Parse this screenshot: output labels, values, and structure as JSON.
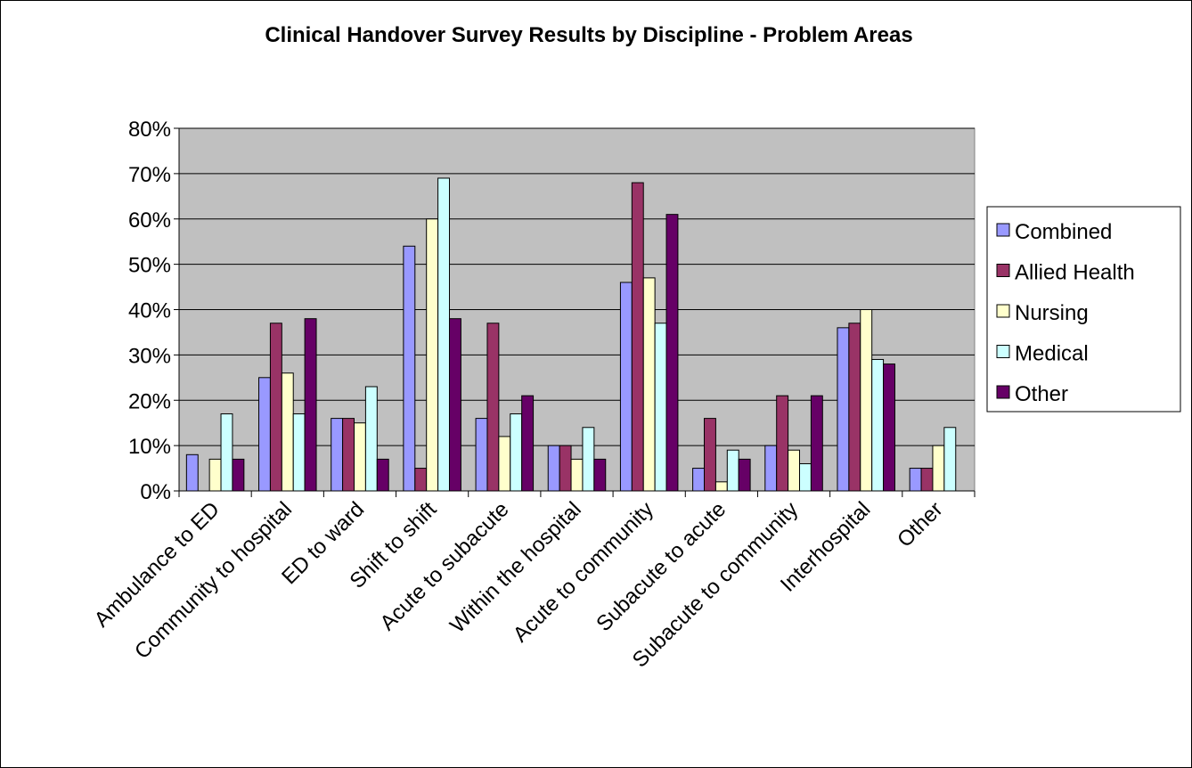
{
  "chart_data": {
    "type": "bar",
    "title": "Clinical Handover Survey Results by Discipline - Problem Areas",
    "xlabel": "",
    "ylabel": "",
    "ylim": [
      0,
      80
    ],
    "yticks": [
      "0%",
      "10%",
      "20%",
      "30%",
      "40%",
      "50%",
      "60%",
      "70%",
      "80%"
    ],
    "grid": true,
    "legend_position": "right",
    "categories": [
      "Ambulance to ED",
      "Community to hospital",
      "ED to ward",
      "Shift to shift",
      "Acute to subacute",
      "Within the hospital",
      "Acute to community",
      "Subacute to acute",
      "Subacute to community",
      "Interhospital",
      "Other"
    ],
    "series": [
      {
        "name": "Combined",
        "color": "#9999FF",
        "values": [
          8,
          25,
          16,
          54,
          16,
          10,
          46,
          5,
          10,
          36,
          5
        ]
      },
      {
        "name": "Allied Health",
        "color": "#993366",
        "values": [
          0,
          37,
          16,
          5,
          37,
          10,
          68,
          16,
          21,
          37,
          5
        ]
      },
      {
        "name": "Nursing",
        "color": "#FFFFCC",
        "values": [
          7,
          26,
          15,
          60,
          12,
          7,
          47,
          2,
          9,
          40,
          10
        ]
      },
      {
        "name": "Medical",
        "color": "#CCFFFF",
        "values": [
          17,
          17,
          23,
          69,
          17,
          14,
          37,
          9,
          6,
          29,
          14
        ]
      },
      {
        "name": "Other",
        "color": "#660066",
        "values": [
          7,
          38,
          7,
          38,
          21,
          7,
          61,
          7,
          21,
          28,
          0
        ]
      }
    ],
    "plot_background": "#C0C0C0"
  }
}
